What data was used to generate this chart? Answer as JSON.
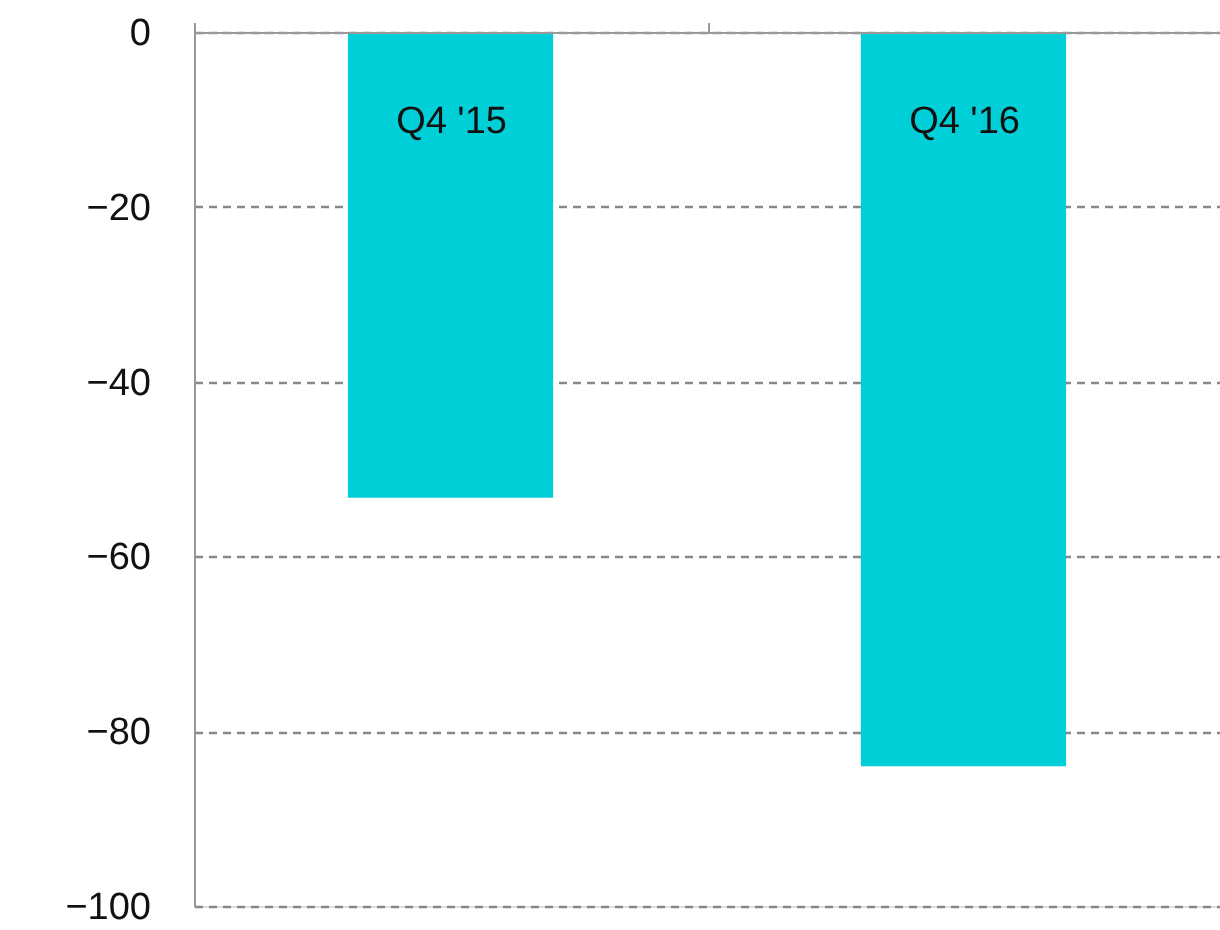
{
  "chart_data": {
    "type": "bar",
    "categories": [
      "Q4 '15",
      "Q4 '16"
    ],
    "values": [
      -53.3,
      -84.0
    ],
    "color": "#00cfd8",
    "ylim": [
      -100,
      0
    ],
    "yticks": [
      -100,
      -80,
      -60,
      -40,
      -20,
      0
    ],
    "grid": "y",
    "line_style": "dashed"
  }
}
